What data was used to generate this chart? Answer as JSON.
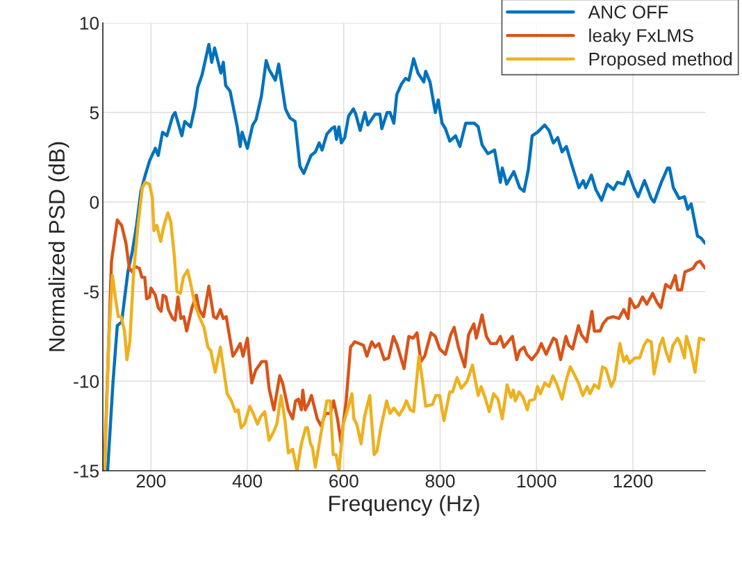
{
  "chart_data": {
    "type": "line",
    "xlabel": "Frequency (Hz)",
    "ylabel": "Normalized PSD (dB)",
    "xlim": [
      100,
      1350
    ],
    "xticks": [
      200,
      400,
      600,
      800,
      1000,
      1200
    ],
    "ylim": [
      -15,
      10
    ],
    "yticks": [
      -15,
      -10,
      -5,
      0,
      5,
      10
    ],
    "grid": true,
    "legend": "top right",
    "marker": "none",
    "line_style": "solid",
    "series": [
      {
        "name": "ANC OFF",
        "color": "#0072bd",
        "x": [
          110,
          121,
          130,
          139,
          152,
          161,
          170,
          179,
          188,
          197,
          209,
          215,
          224,
          233,
          245,
          250,
          264,
          270,
          282,
          291,
          297,
          306,
          320,
          326,
          332,
          345,
          350,
          355,
          364,
          379,
          385,
          389,
          400,
          411,
          418,
          429,
          439,
          445,
          458,
          465,
          479,
          488,
          499,
          509,
          517,
          532,
          541,
          549,
          555,
          565,
          575,
          581,
          585,
          590,
          595,
          602,
          610,
          620,
          625,
          634,
          644,
          650,
          665,
          675,
          679,
          690,
          696,
          704,
          710,
          720,
          728,
          735,
          745,
          754,
          766,
          770,
          779,
          790,
          796,
          804,
          811,
          820,
          832,
          841,
          853,
          865,
          871,
          879,
          887,
          899,
          913,
          925,
          929,
          938,
          953,
          965,
          974,
          983,
          991,
          1002,
          1017,
          1026,
          1035,
          1044,
          1053,
          1062,
          1073,
          1088,
          1097,
          1102,
          1114,
          1123,
          1135,
          1147,
          1160,
          1168,
          1181,
          1190,
          1202,
          1211,
          1224,
          1238,
          1244,
          1259,
          1272,
          1276,
          1284,
          1296,
          1307,
          1314,
          1321,
          1334,
          1341,
          1350
        ],
        "values": [
          -15,
          -10.1,
          -6.9,
          -6.7,
          -3.9,
          -2.8,
          -1.3,
          0.6,
          1.5,
          2.3,
          3.0,
          2.6,
          3.9,
          3.7,
          4.8,
          5.0,
          3.7,
          4.5,
          4.2,
          5.3,
          6.4,
          7.1,
          8.8,
          7.8,
          8.6,
          7.2,
          7.8,
          6.5,
          6.2,
          4.2,
          3.1,
          3.9,
          3.0,
          4.3,
          4.6,
          5.9,
          7.9,
          7.4,
          6.8,
          7.7,
          5.2,
          4.7,
          4.5,
          2.0,
          1.6,
          2.6,
          2.8,
          3.3,
          2.9,
          3.8,
          4.1,
          4.2,
          3.5,
          4.2,
          3.3,
          3.6,
          4.8,
          5.2,
          4.9,
          4.0,
          5.0,
          4.3,
          4.9,
          4.9,
          4.1,
          5.0,
          5.0,
          4.4,
          6.0,
          6.6,
          6.9,
          6.8,
          8.0,
          7.2,
          6.7,
          7.3,
          6.7,
          5.0,
          5.7,
          4.4,
          4.1,
          3.4,
          3.7,
          3.1,
          4.4,
          4.4,
          4.4,
          4.2,
          3.2,
          2.7,
          2.9,
          1.1,
          1.9,
          1.0,
          1.7,
          0.8,
          0.6,
          1.8,
          3.7,
          3.9,
          4.3,
          4.0,
          3.3,
          3.6,
          2.8,
          3.1,
          2.1,
          0.8,
          1.2,
          0.8,
          1.5,
          0.7,
          0.1,
          1.0,
          0.7,
          1.1,
          1.0,
          1.7,
          0.8,
          0.3,
          1.2,
          0.2,
          0.0,
          1.1,
          1.9,
          1.9,
          0.8,
          0.2,
          0.3,
          -0.4,
          -0.1,
          -1.9,
          -2.0,
          -2.3
        ]
      },
      {
        "name": "leaky FxLMS",
        "color": "#d95319",
        "x": [
          103,
          118,
          130,
          139,
          148,
          155,
          161,
          167,
          176,
          181,
          187,
          191,
          197,
          200,
          209,
          215,
          221,
          225,
          231,
          236,
          245,
          250,
          256,
          262,
          268,
          274,
          285,
          294,
          300,
          309,
          320,
          330,
          336,
          344,
          350,
          356,
          370,
          377,
          385,
          391,
          400,
          409,
          417,
          430,
          439,
          445,
          455,
          467,
          473,
          485,
          494,
          500,
          506,
          512,
          515,
          520,
          526,
          533,
          545,
          553,
          562,
          572,
          579,
          587,
          594,
          605,
          614,
          623,
          632,
          641,
          648,
          658,
          665,
          673,
          684,
          693,
          703,
          711,
          725,
          735,
          744,
          752,
          760,
          768,
          781,
          790,
          799,
          811,
          822,
          829,
          838,
          851,
          859,
          870,
          875,
          887,
          896,
          905,
          917,
          925,
          932,
          950,
          959,
          965,
          974,
          980,
          990,
          1002,
          1010,
          1020,
          1035,
          1041,
          1050,
          1061,
          1067,
          1075,
          1087,
          1093,
          1104,
          1115,
          1120,
          1132,
          1138,
          1147,
          1159,
          1171,
          1181,
          1190,
          1194,
          1204,
          1211,
          1220,
          1229,
          1241,
          1250,
          1258,
          1268,
          1278,
          1288,
          1293,
          1301,
          1308,
          1317,
          1325,
          1332,
          1339,
          1350
        ],
        "values": [
          -15,
          -3.3,
          -1.0,
          -1.3,
          -2.3,
          -3.7,
          -3.9,
          -3.6,
          -3.7,
          -4.2,
          -4.2,
          -5.4,
          -5.3,
          -4.8,
          -5.2,
          -5.9,
          -6.1,
          -5.2,
          -5.3,
          -6.0,
          -6.5,
          -6.6,
          -5.3,
          -6.5,
          -6.4,
          -7.2,
          -5.9,
          -5.2,
          -6.0,
          -6.4,
          -4.7,
          -6.4,
          -6.5,
          -6.0,
          -6.5,
          -6.4,
          -8.6,
          -8.3,
          -7.9,
          -8.6,
          -7.6,
          -10.1,
          -9.4,
          -8.9,
          -8.9,
          -10.4,
          -11.6,
          -9.7,
          -10.1,
          -11.6,
          -12.1,
          -11.1,
          -11.0,
          -11.6,
          -10.5,
          -11.6,
          -11.3,
          -10.8,
          -12.1,
          -12.5,
          -11.8,
          -11.8,
          -11.1,
          -12.1,
          -13.4,
          -11.1,
          -8.1,
          -7.8,
          -7.9,
          -8.0,
          -8.6,
          -7.8,
          -8.1,
          -7.9,
          -8.8,
          -8.7,
          -7.5,
          -8.0,
          -9.3,
          -7.5,
          -7.6,
          -7.3,
          -8.9,
          -8.6,
          -7.3,
          -7.5,
          -8.2,
          -8.5,
          -7.4,
          -7.0,
          -8.1,
          -9.2,
          -7.4,
          -6.8,
          -7.6,
          -6.3,
          -7.5,
          -7.9,
          -7.9,
          -7.5,
          -8.1,
          -7.5,
          -8.8,
          -8.3,
          -8.1,
          -8.5,
          -8.8,
          -8.4,
          -7.9,
          -8.5,
          -7.6,
          -7.7,
          -8.8,
          -7.5,
          -8.0,
          -8.2,
          -6.9,
          -7.4,
          -7.8,
          -6.1,
          -7.2,
          -7.2,
          -6.8,
          -6.5,
          -6.4,
          -6.5,
          -6.0,
          -6.5,
          -5.4,
          -5.9,
          -5.8,
          -5.3,
          -5.7,
          -5.1,
          -5.6,
          -5.9,
          -4.6,
          -4.8,
          -4.1,
          -4.9,
          -4.9,
          -3.9,
          -3.8,
          -3.7,
          -3.4,
          -3.3,
          -3.7
        ]
      },
      {
        "name": "Proposed method",
        "color": "#edb120",
        "x": [
          104,
          112,
          120,
          127,
          132,
          138,
          145,
          150,
          156,
          164,
          173,
          182,
          188,
          197,
          203,
          206,
          212,
          220,
          227,
          235,
          241,
          248,
          254,
          261,
          267,
          276,
          285,
          291,
          300,
          310,
          318,
          324,
          333,
          344,
          358,
          367,
          375,
          381,
          387,
          394,
          405,
          412,
          421,
          427,
          436,
          445,
          455,
          461,
          470,
          478,
          485,
          494,
          503,
          512,
          521,
          525,
          531,
          535,
          541,
          549,
          558,
          565,
          572,
          578,
          584,
          590,
          599,
          609,
          617,
          621,
          627,
          636,
          643,
          654,
          663,
          669,
          677,
          689,
          696,
          704,
          715,
          724,
          730,
          738,
          745,
          756,
          764,
          770,
          784,
          791,
          799,
          808,
          820,
          826,
          835,
          844,
          856,
          867,
          879,
          885,
          893,
          902,
          911,
          920,
          929,
          939,
          947,
          952,
          956,
          964,
          972,
          981,
          985,
          996,
          1002,
          1008,
          1017,
          1026,
          1034,
          1041,
          1053,
          1062,
          1070,
          1078,
          1087,
          1096,
          1105,
          1111,
          1120,
          1129,
          1137,
          1144,
          1155,
          1162,
          1173,
          1181,
          1187,
          1193,
          1204,
          1214,
          1223,
          1230,
          1238,
          1244,
          1256,
          1262,
          1268,
          1276,
          1283,
          1293,
          1297,
          1307,
          1311,
          1320,
          1329,
          1338,
          1350
        ],
        "values": [
          -15,
          -7.8,
          -4.1,
          -5.5,
          -6.4,
          -6.4,
          -7.2,
          -8.8,
          -7.8,
          -3.9,
          -1.3,
          0.8,
          1.1,
          1.0,
          0.2,
          -1.6,
          -1.3,
          -2.2,
          -1.3,
          -0.6,
          -1.1,
          -2.9,
          -5.0,
          -5.1,
          -4.2,
          -3.8,
          -4.9,
          -5.7,
          -6.4,
          -7.0,
          -8.1,
          -8.3,
          -9.5,
          -8.1,
          -10.7,
          -11.1,
          -11.7,
          -11.6,
          -12.6,
          -12.4,
          -11.4,
          -11.8,
          -12.4,
          -12.0,
          -11.7,
          -13.3,
          -12.8,
          -12.4,
          -10.8,
          -12.2,
          -14.0,
          -13.8,
          -15,
          -13.5,
          -12.6,
          -12.6,
          -13.5,
          -13.7,
          -14.8,
          -13.5,
          -12.1,
          -11.1,
          -11.1,
          -14.1,
          -14.1,
          -15,
          -12.4,
          -11.5,
          -10.7,
          -12.1,
          -12.4,
          -13.5,
          -12.0,
          -10.8,
          -14.1,
          -13.9,
          -12.6,
          -11.1,
          -11.8,
          -11.5,
          -11.9,
          -11.5,
          -11.1,
          -11.6,
          -11.7,
          -8.6,
          -10.1,
          -11.4,
          -11.3,
          -10.8,
          -10.8,
          -12.2,
          -10.6,
          -10.6,
          -9.8,
          -10.4,
          -10.0,
          -9.1,
          -10.8,
          -10.3,
          -10.9,
          -11.7,
          -10.7,
          -11.0,
          -12.1,
          -10.2,
          -10.9,
          -10.5,
          -11.1,
          -10.6,
          -10.9,
          -11.6,
          -11.1,
          -11.0,
          -10.3,
          -10.7,
          -10.1,
          -10.3,
          -9.7,
          -10.1,
          -11.0,
          -9.9,
          -9.2,
          -9.6,
          -10.1,
          -10.8,
          -10.3,
          -10.7,
          -10.2,
          -10.4,
          -9.2,
          -9.3,
          -10.3,
          -9.9,
          -7.9,
          -8.9,
          -8.6,
          -9.0,
          -8.7,
          -8.7,
          -8.0,
          -7.7,
          -7.8,
          -9.6,
          -8.0,
          -7.6,
          -8.3,
          -8.9,
          -8.0,
          -7.6,
          -7.8,
          -8.7,
          -7.5,
          -8.3,
          -9.5,
          -7.6,
          -7.7
        ]
      }
    ]
  }
}
